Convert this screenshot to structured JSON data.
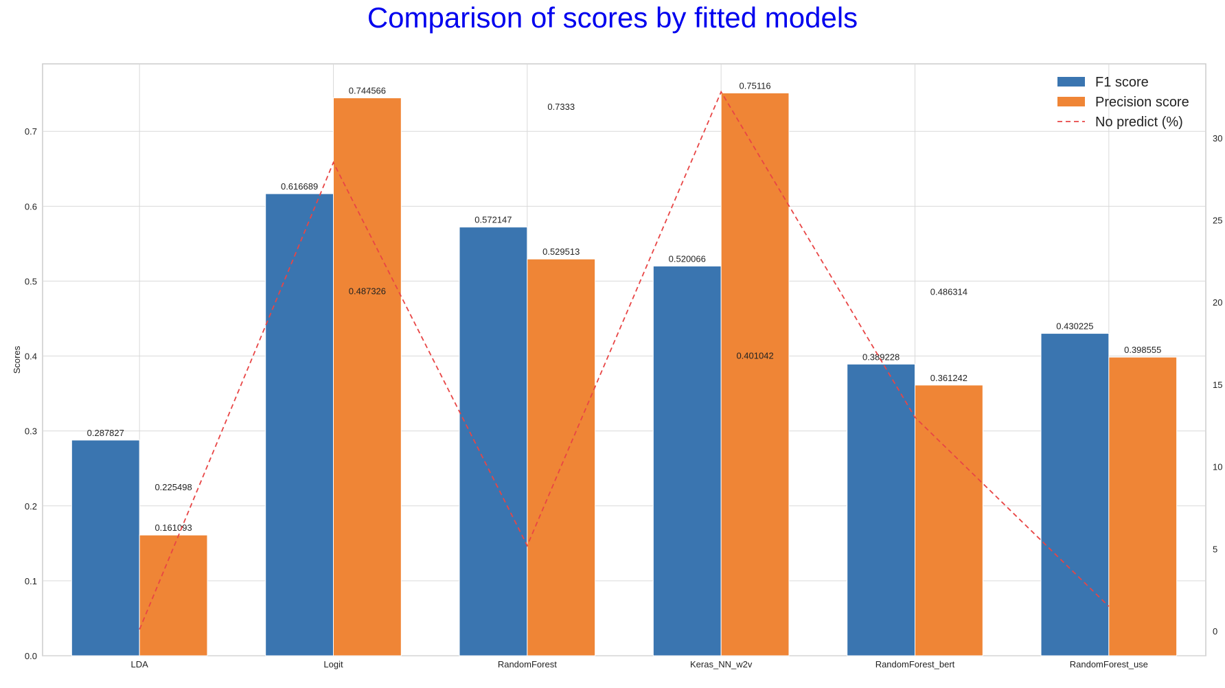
{
  "chart_data": {
    "type": "bar",
    "title": "Comparison of scores by fitted models",
    "ylabel": "Scores",
    "xlabel": "",
    "categories": [
      "LDA",
      "Logit",
      "RandomForest",
      "Keras_NN_w2v",
      "RandomForest_bert",
      "RandomForest_use"
    ],
    "ylim": [
      0,
      0.79
    ],
    "yticks": [
      0.0,
      0.1,
      0.2,
      0.3,
      0.4,
      0.5,
      0.6,
      0.7
    ],
    "y2lim": [
      -1.5,
      34.5
    ],
    "y2ticks": [
      0,
      5,
      10,
      15,
      20,
      25,
      30
    ],
    "grid": true,
    "legend_position": "top-right",
    "series": [
      {
        "name": "F1 score",
        "color": "#3a75b0",
        "values": [
          0.287827,
          0.616689,
          0.572147,
          0.520066,
          0.389228,
          0.430225
        ],
        "labels": [
          "0.287827",
          "0.616689",
          "0.572147",
          "0.520066",
          "0.389228",
          "0.430225"
        ]
      },
      {
        "name": "Precision score",
        "color": "#ef8536",
        "values": [
          0.161093,
          0.744566,
          0.529513,
          0.75116,
          0.361242,
          0.398555
        ],
        "labels": [
          "0.161093",
          "0.744566",
          "0.529513",
          "0.75116",
          "0.361242",
          "0.398555"
        ]
      },
      {
        "name": "No predict (%)",
        "type": "line",
        "axis": "right",
        "color": "#e84545",
        "style": "dashed",
        "values": [
          0.1,
          28.5,
          5.2,
          32.8,
          13.0,
          1.5
        ]
      }
    ],
    "annotations": [
      {
        "text": "0.225498",
        "category": "LDA",
        "value": 0.225498
      },
      {
        "text": "0.487326",
        "category": "Logit",
        "value": 0.487326
      },
      {
        "text": "0.7333",
        "category": "RandomForest",
        "value": 0.7333
      },
      {
        "text": "0.401042",
        "category": "Keras_NN_w2v",
        "value": 0.401042
      },
      {
        "text": "0.486314",
        "category": "RandomForest_bert",
        "value": 0.486314
      }
    ]
  }
}
